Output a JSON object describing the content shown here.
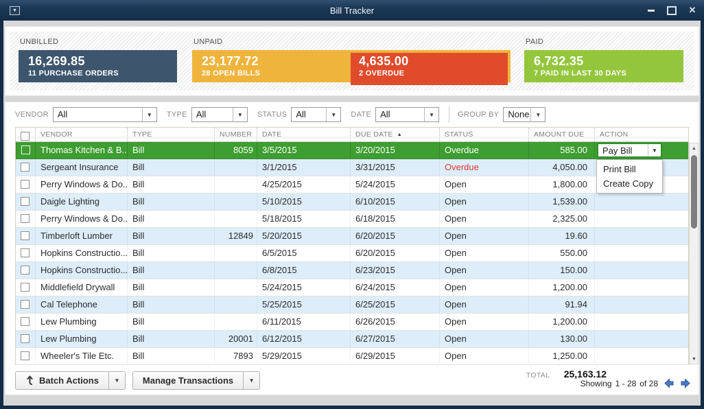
{
  "window": {
    "title": "Bill Tracker"
  },
  "summary": {
    "unbilled": {
      "label": "UNBILLED",
      "amount": "16,269.85",
      "caption": "11 PURCHASE ORDERS",
      "color": "#3d566e"
    },
    "unpaid": {
      "label": "UNPAID",
      "amount": "23,177.72",
      "caption": "28 OPEN BILLS",
      "color": "#efb43c",
      "overdue": {
        "amount": "4,635.00",
        "caption": "2 OVERDUE",
        "color": "#e04b2c"
      }
    },
    "paid": {
      "label": "PAID",
      "amount": "6,732.35",
      "caption": "7 PAID IN LAST 30 DAYS",
      "color": "#94c63d"
    }
  },
  "filters": {
    "vendor": {
      "label": "VENDOR",
      "value": "All"
    },
    "type": {
      "label": "TYPE",
      "value": "All"
    },
    "status": {
      "label": "STATUS",
      "value": "All"
    },
    "date": {
      "label": "DATE",
      "value": "All"
    },
    "group_by": {
      "label": "GROUP BY",
      "value": "None"
    }
  },
  "table": {
    "columns": [
      "VENDOR",
      "TYPE",
      "NUMBER",
      "DATE",
      "DUE DATE",
      "STATUS",
      "AMOUNT DUE",
      "ACTION"
    ],
    "sort_column": "DUE DATE",
    "sort_direction": "ascending",
    "rows": [
      {
        "vendor": "Thomas Kitchen & B...",
        "type": "Bill",
        "number": "8059",
        "date": "3/5/2015",
        "due": "3/20/2015",
        "status": "Overdue",
        "amount": "585.00",
        "selected": true,
        "overdue_red": false
      },
      {
        "vendor": "Sergeant Insurance",
        "type": "Bill",
        "number": "",
        "date": "3/1/2015",
        "due": "3/31/2015",
        "status": "Overdue",
        "amount": "4,050.00",
        "selected": false,
        "overdue_red": true
      },
      {
        "vendor": "Perry Windows & Do...",
        "type": "Bill",
        "number": "",
        "date": "4/25/2015",
        "due": "5/24/2015",
        "status": "Open",
        "amount": "1,800.00",
        "selected": false,
        "overdue_red": false
      },
      {
        "vendor": "Daigle Lighting",
        "type": "Bill",
        "number": "",
        "date": "5/10/2015",
        "due": "6/10/2015",
        "status": "Open",
        "amount": "1,539.00",
        "selected": false,
        "overdue_red": false
      },
      {
        "vendor": "Perry Windows & Do...",
        "type": "Bill",
        "number": "",
        "date": "5/18/2015",
        "due": "6/18/2015",
        "status": "Open",
        "amount": "2,325.00",
        "selected": false,
        "overdue_red": false
      },
      {
        "vendor": "Timberloft Lumber",
        "type": "Bill",
        "number": "12849",
        "date": "5/20/2015",
        "due": "6/20/2015",
        "status": "Open",
        "amount": "19.60",
        "selected": false,
        "overdue_red": false
      },
      {
        "vendor": "Hopkins Constructio...",
        "type": "Bill",
        "number": "",
        "date": "6/5/2015",
        "due": "6/20/2015",
        "status": "Open",
        "amount": "550.00",
        "selected": false,
        "overdue_red": false
      },
      {
        "vendor": "Hopkins Constructio...",
        "type": "Bill",
        "number": "",
        "date": "6/8/2015",
        "due": "6/23/2015",
        "status": "Open",
        "amount": "150.00",
        "selected": false,
        "overdue_red": false
      },
      {
        "vendor": "Middlefield Drywall",
        "type": "Bill",
        "number": "",
        "date": "5/24/2015",
        "due": "6/24/2015",
        "status": "Open",
        "amount": "1,200.00",
        "selected": false,
        "overdue_red": false
      },
      {
        "vendor": "Cal Telephone",
        "type": "Bill",
        "number": "",
        "date": "5/25/2015",
        "due": "6/25/2015",
        "status": "Open",
        "amount": "91.94",
        "selected": false,
        "overdue_red": false
      },
      {
        "vendor": "Lew Plumbing",
        "type": "Bill",
        "number": "",
        "date": "6/11/2015",
        "due": "6/26/2015",
        "status": "Open",
        "amount": "1,200.00",
        "selected": false,
        "overdue_red": false
      },
      {
        "vendor": "Lew Plumbing",
        "type": "Bill",
        "number": "20001",
        "date": "6/12/2015",
        "due": "6/27/2015",
        "status": "Open",
        "amount": "130.00",
        "selected": false,
        "overdue_red": false
      },
      {
        "vendor": "Wheeler's Tile Etc.",
        "type": "Bill",
        "number": "7893",
        "date": "5/29/2015",
        "due": "6/29/2015",
        "status": "Open",
        "amount": "1,250.00",
        "selected": false,
        "overdue_red": false
      }
    ]
  },
  "action_dropdown": {
    "button": "Pay Bill",
    "menu": [
      "Print Bill",
      "Create Copy"
    ]
  },
  "footer": {
    "total_label": "TOTAL",
    "total_value": "25,163.12",
    "batch_actions_label": "Batch Actions",
    "manage_transactions_label": "Manage Transactions",
    "showing_label": "Showing",
    "showing_range": "1  -  28",
    "showing_of": "of  28"
  },
  "colors": {
    "selected_row": "#3e9e31",
    "alt_row": "#ddedfa",
    "overdue_text": "#e23b2e",
    "titlebar": "#1c3a58"
  }
}
